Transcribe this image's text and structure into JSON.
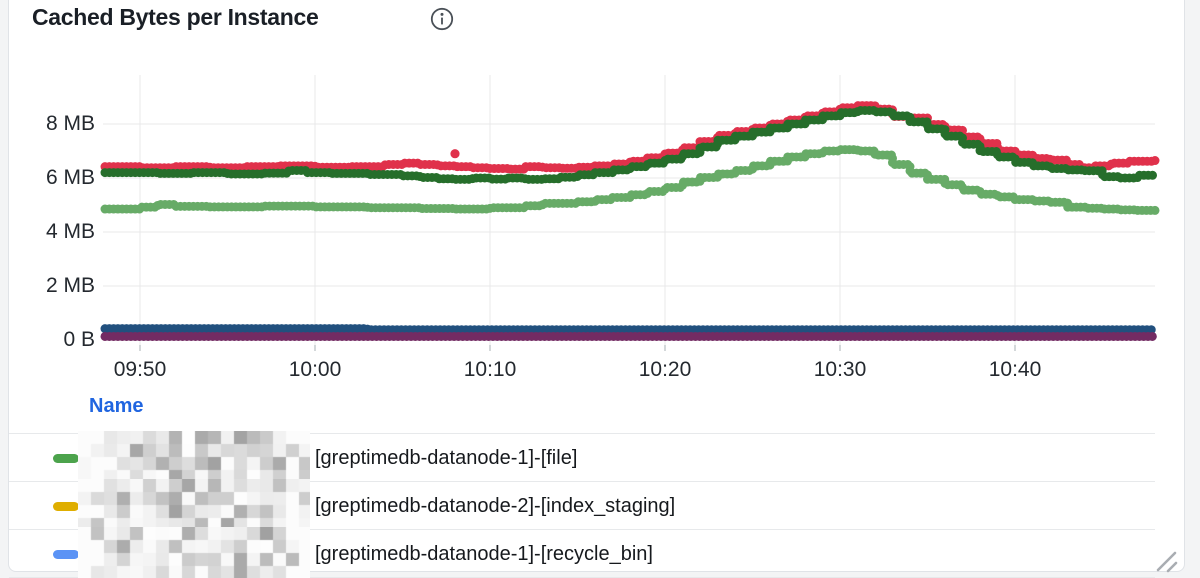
{
  "panel": {
    "title": "Cached Bytes per Instance"
  },
  "icons": {
    "info": "info-icon",
    "resize": "resize-handle-icon"
  },
  "colors": {
    "red_line": "#e0314b",
    "dark_green_line": "#266e2b",
    "light_green_line": "#67ab67",
    "navy_line": "#21507e",
    "purple_line": "#732b63",
    "legend_green": "#4ca34c",
    "legend_gold": "#dfae00",
    "legend_blue": "#5b93f5",
    "name_header_blue": "#2065e0",
    "gridline": "#e8e9ea"
  },
  "chart_data": {
    "type": "line",
    "title": "Cached Bytes per Instance",
    "style": "thick dotted step lines",
    "x_unit": "minutes since 09:48",
    "y_unit": "MB",
    "xlim": [
      0,
      60
    ],
    "ylim": [
      0,
      9.8
    ],
    "grid": true,
    "legend_position": "bottom-table",
    "x_ticks": [
      {
        "label": "09:50",
        "min": 2
      },
      {
        "label": "10:00",
        "min": 12
      },
      {
        "label": "10:10",
        "min": 22
      },
      {
        "label": "10:20",
        "min": 32
      },
      {
        "label": "10:30",
        "min": 42
      },
      {
        "label": "10:40",
        "min": 52
      }
    ],
    "y_ticks": [
      {
        "label": "8 MB",
        "mb": 8
      },
      {
        "label": "6 MB",
        "mb": 6
      },
      {
        "label": "4 MB",
        "mb": 4
      },
      {
        "label": "2 MB",
        "mb": 2
      },
      {
        "label": "0 B",
        "mb": 0
      }
    ],
    "series": [
      {
        "name": "red-series",
        "color": "#e0314b",
        "outliers": [
          [
            20,
            6.9
          ]
        ],
        "points": [
          [
            0,
            6.42
          ],
          [
            2,
            6.38
          ],
          [
            4,
            6.42
          ],
          [
            6,
            6.38
          ],
          [
            8,
            6.42
          ],
          [
            10,
            6.45
          ],
          [
            12,
            6.4
          ],
          [
            14,
            6.42
          ],
          [
            16,
            6.5
          ],
          [
            17,
            6.55
          ],
          [
            18,
            6.5
          ],
          [
            19,
            6.45
          ],
          [
            20,
            6.42
          ],
          [
            21,
            6.38
          ],
          [
            22,
            6.35
          ],
          [
            23,
            6.33
          ],
          [
            24,
            6.42
          ],
          [
            25,
            6.38
          ],
          [
            26,
            6.36
          ],
          [
            27,
            6.4
          ],
          [
            28,
            6.45
          ],
          [
            29,
            6.52
          ],
          [
            30,
            6.62
          ],
          [
            31,
            6.75
          ],
          [
            32,
            6.92
          ],
          [
            33,
            7.12
          ],
          [
            34,
            7.35
          ],
          [
            35,
            7.58
          ],
          [
            36,
            7.72
          ],
          [
            37,
            7.85
          ],
          [
            38,
            8.0
          ],
          [
            39,
            8.15
          ],
          [
            40,
            8.3
          ],
          [
            41,
            8.45
          ],
          [
            42,
            8.6
          ],
          [
            43,
            8.68
          ],
          [
            44,
            8.55
          ],
          [
            45,
            8.28
          ],
          [
            46,
            8.22
          ],
          [
            47,
            7.98
          ],
          [
            48,
            7.78
          ],
          [
            49,
            7.52
          ],
          [
            50,
            7.28
          ],
          [
            51,
            7.0
          ],
          [
            52,
            6.85
          ],
          [
            53,
            6.72
          ],
          [
            54,
            6.66
          ],
          [
            55,
            6.5
          ],
          [
            55.7,
            6.38
          ],
          [
            56.5,
            6.45
          ],
          [
            57.5,
            6.55
          ],
          [
            58.5,
            6.62
          ],
          [
            60,
            6.66
          ]
        ]
      },
      {
        "name": "dark-green-series",
        "color": "#266e2b",
        "points": [
          [
            0,
            6.2
          ],
          [
            3,
            6.17
          ],
          [
            5,
            6.2
          ],
          [
            7,
            6.15
          ],
          [
            9,
            6.18
          ],
          [
            10.5,
            6.28
          ],
          [
            11.5,
            6.2
          ],
          [
            13,
            6.17
          ],
          [
            15,
            6.13
          ],
          [
            17,
            6.08
          ],
          [
            18,
            6.02
          ],
          [
            19,
            5.97
          ],
          [
            20,
            5.95
          ],
          [
            21,
            6.0
          ],
          [
            22,
            5.96
          ],
          [
            23,
            6.0
          ],
          [
            24,
            5.95
          ],
          [
            25,
            5.97
          ],
          [
            26,
            6.03
          ],
          [
            27,
            6.12
          ],
          [
            28,
            6.2
          ],
          [
            29,
            6.3
          ],
          [
            30,
            6.42
          ],
          [
            31,
            6.55
          ],
          [
            32,
            6.7
          ],
          [
            33,
            6.9
          ],
          [
            34,
            7.15
          ],
          [
            35,
            7.4
          ],
          [
            36,
            7.55
          ],
          [
            37,
            7.7
          ],
          [
            38,
            7.85
          ],
          [
            39,
            8.0
          ],
          [
            40,
            8.15
          ],
          [
            41,
            8.3
          ],
          [
            42,
            8.42
          ],
          [
            43,
            8.5
          ],
          [
            44,
            8.45
          ],
          [
            45,
            8.3
          ],
          [
            46,
            8.08
          ],
          [
            47,
            7.82
          ],
          [
            48,
            7.55
          ],
          [
            49,
            7.25
          ],
          [
            50,
            6.98
          ],
          [
            51,
            6.78
          ],
          [
            52,
            6.58
          ],
          [
            53,
            6.45
          ],
          [
            54,
            6.35
          ],
          [
            55,
            6.3
          ],
          [
            56,
            6.27
          ],
          [
            57,
            6.05
          ],
          [
            58,
            6.0
          ],
          [
            59,
            6.1
          ],
          [
            60,
            6.15
          ]
        ]
      },
      {
        "name": "light-green-series",
        "color": "#67ab67",
        "points": [
          [
            0,
            4.85
          ],
          [
            2,
            4.92
          ],
          [
            3,
            5.02
          ],
          [
            4,
            4.95
          ],
          [
            6,
            4.93
          ],
          [
            9,
            4.96
          ],
          [
            12,
            4.93
          ],
          [
            15,
            4.9
          ],
          [
            18,
            4.87
          ],
          [
            20,
            4.85
          ],
          [
            22,
            4.9
          ],
          [
            24,
            4.97
          ],
          [
            25,
            5.06
          ],
          [
            27,
            5.12
          ],
          [
            28,
            5.2
          ],
          [
            29,
            5.28
          ],
          [
            30,
            5.38
          ],
          [
            31,
            5.5
          ],
          [
            32,
            5.65
          ],
          [
            33,
            5.85
          ],
          [
            34,
            6.02
          ],
          [
            35,
            6.15
          ],
          [
            36,
            6.28
          ],
          [
            37,
            6.45
          ],
          [
            38,
            6.62
          ],
          [
            39,
            6.78
          ],
          [
            40,
            6.9
          ],
          [
            41,
            7.0
          ],
          [
            42,
            7.05
          ],
          [
            43,
            7.0
          ],
          [
            44,
            6.85
          ],
          [
            45,
            6.5
          ],
          [
            46,
            6.18
          ],
          [
            47,
            5.95
          ],
          [
            48,
            5.75
          ],
          [
            49,
            5.55
          ],
          [
            50,
            5.4
          ],
          [
            51,
            5.3
          ],
          [
            52,
            5.2
          ],
          [
            53,
            5.15
          ],
          [
            54,
            5.1
          ],
          [
            55,
            4.92
          ],
          [
            56,
            4.88
          ],
          [
            57,
            4.85
          ],
          [
            58,
            4.82
          ],
          [
            59,
            4.8
          ],
          [
            60,
            4.78
          ]
        ]
      },
      {
        "name": "navy-series",
        "color": "#21507e",
        "points": [
          [
            0,
            0.42
          ],
          [
            14,
            0.42
          ],
          [
            15,
            0.38
          ],
          [
            60,
            0.38
          ]
        ]
      },
      {
        "name": "purple-series",
        "color": "#732b63",
        "points": [
          [
            0,
            0.13
          ],
          [
            60,
            0.13
          ]
        ]
      }
    ]
  },
  "legend": {
    "header": "Name",
    "rows": [
      {
        "color": "#4ca34c",
        "prefix_redacted": true,
        "label": "[greptimedb-datanode-1]-[file]"
      },
      {
        "color": "#dfae00",
        "prefix_redacted": true,
        "label": "[greptimedb-datanode-2]-[index_staging]"
      },
      {
        "color": "#5b93f5",
        "prefix_redacted": true,
        "label": "[greptimedb-datanode-1]-[recycle_bin]"
      }
    ]
  }
}
